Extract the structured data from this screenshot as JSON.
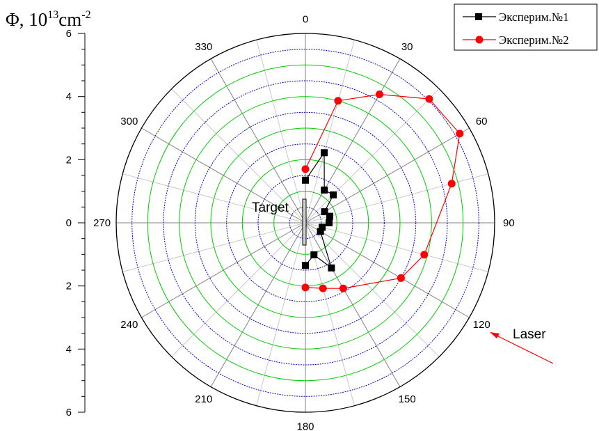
{
  "chart_data": {
    "type": "polar",
    "ylabel": {
      "main": "Φ, 10",
      "exp1": "13",
      "unit": "cm",
      "exp2": "-2"
    },
    "radial_range": [
      0,
      6
    ],
    "radial_ticks": [
      "0",
      "2",
      "4",
      "6"
    ],
    "angular_ticks": [
      "0",
      "30",
      "60",
      "90",
      "120",
      "150",
      "180",
      "210",
      "240",
      "270",
      "300",
      "330"
    ],
    "grid": true,
    "legend_position": "top-right",
    "colors": {
      "series1": "#000000",
      "series2": "#ff0000",
      "grid_major": "#00cc00",
      "grid_minor": "#0000cc",
      "spokes": "#808080"
    },
    "series": [
      {
        "name": "Эксперим.№1",
        "marker": "square",
        "color": "#000000",
        "points": [
          {
            "angle": 0,
            "r": 1.35
          },
          {
            "angle": 15,
            "r": 2.3
          },
          {
            "angle": 30,
            "r": 1.2
          },
          {
            "angle": 45,
            "r": 1.25
          },
          {
            "angle": 60,
            "r": 0.7
          },
          {
            "angle": 75,
            "r": 0.8
          },
          {
            "angle": 90,
            "r": 0.75
          },
          {
            "angle": 105,
            "r": 0.55
          },
          {
            "angle": 120,
            "r": 0.55
          },
          {
            "angle": 150,
            "r": 1.65
          },
          {
            "angle": 165,
            "r": 1.05
          },
          {
            "angle": 180,
            "r": 1.35
          }
        ]
      },
      {
        "name": "Эксперим.№2",
        "marker": "circle",
        "color": "#ff0000",
        "points": [
          {
            "angle": 0,
            "r": 1.7
          },
          {
            "angle": 15,
            "r": 4.0
          },
          {
            "angle": 30,
            "r": 4.7
          },
          {
            "angle": 45,
            "r": 5.55
          },
          {
            "angle": 60,
            "r": 5.65
          },
          {
            "angle": 75,
            "r": 4.8
          },
          {
            "angle": 105,
            "r": 3.9
          },
          {
            "angle": 120,
            "r": 3.5
          },
          {
            "angle": 150,
            "r": 2.4
          },
          {
            "angle": 165,
            "r": 2.15
          },
          {
            "angle": 180,
            "r": 2.05
          }
        ]
      }
    ],
    "annotations": [
      "Target",
      "Laser"
    ]
  }
}
